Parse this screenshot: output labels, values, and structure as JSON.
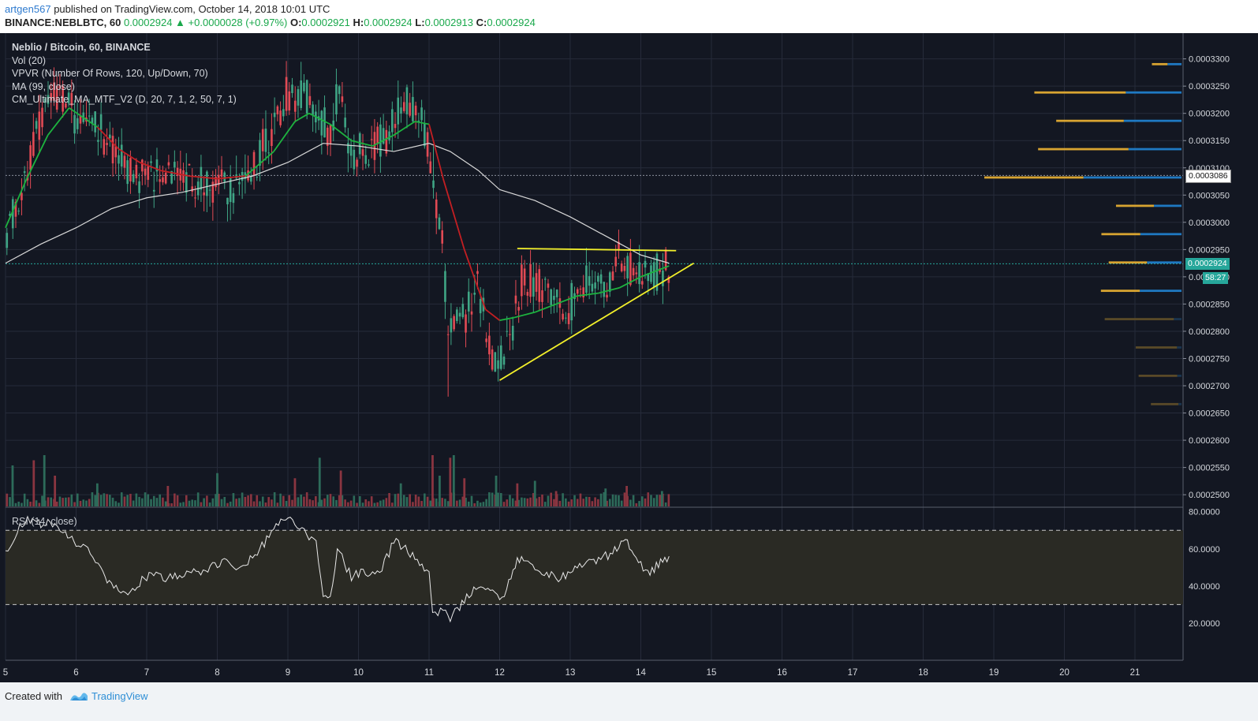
{
  "header": {
    "author": "artgen567",
    "published_text": "published on TradingView.com, October 14, 2018 10:01 UTC",
    "symbol": "BINANCE:NEBLBTC, 60",
    "last_price": "0.0002924",
    "change_arrow": "▲",
    "change": "+0.0000028 (+0.97%)",
    "o_label": "O:",
    "o_value": "0.0002921",
    "h_label": "H:",
    "h_value": "0.0002924",
    "l_label": "L:",
    "l_value": "0.0002913",
    "c_label": "C:",
    "c_value": "0.0002924"
  },
  "legend": {
    "title": "Neblio / Bitcoin, 60, BINANCE",
    "vol": "Vol (20)",
    "vpvr": "VPVR (Number Of Rows, 120, Up/Down, 70)",
    "ma": "MA (99, close)",
    "cm": "CM_Ultimate_MA_MTF_V2 (D, 20, 7, 1, 2, 50, 7, 1)"
  },
  "rsi_label": "RSI (14, close)",
  "price_tags": {
    "crosshair_price": "0.0003086",
    "current_price": "0.0002924",
    "countdown": "58:27"
  },
  "footer": {
    "created_with": "Created with",
    "brand": "TradingView"
  },
  "colors": {
    "background": "#131722",
    "grid": "#262b3a",
    "up_candle": "#3fa585",
    "down_candle": "#e24a54",
    "ma_white": "#d8d8d8",
    "cm_green": "#1db33f",
    "cm_red": "#c31f23",
    "trendline": "#f2ef2a",
    "vpvr_up": "#1f79c2",
    "vpvr_down": "#d8a431",
    "current_price_tag": "#26a69a"
  },
  "chart_data": [
    {
      "type": "candlestick",
      "title": "Neblio / Bitcoin, 60, BINANCE",
      "x_ticks": [
        "5",
        "6",
        "7",
        "8",
        "9",
        "10",
        "11",
        "12",
        "13",
        "14",
        "15",
        "16",
        "17",
        "18",
        "19",
        "20",
        "21"
      ],
      "y_ticks": [
        "0.0003300",
        "0.0003250",
        "0.0003200",
        "0.0003150",
        "0.0003100",
        "0.0003050",
        "0.0003000",
        "0.0002950",
        "0.0002900",
        "0.0002850",
        "0.0002800",
        "0.0002750",
        "0.0002700",
        "0.0002650",
        "0.0002600",
        "0.0002550",
        "0.0002500"
      ],
      "ylim": [
        0.00024785,
        0.000334
      ],
      "price_path": [
        [
          5.0,
          0.000298
        ],
        [
          5.3,
          0.00031
        ],
        [
          5.6,
          0.000322
        ],
        [
          5.8,
          0.000323
        ],
        [
          6.0,
          0.000319
        ],
        [
          6.3,
          0.000318
        ],
        [
          6.5,
          0.000313
        ],
        [
          6.8,
          0.000309
        ],
        [
          7.0,
          0.000308
        ],
        [
          7.3,
          0.00031
        ],
        [
          7.6,
          0.000308
        ],
        [
          7.9,
          0.000307
        ],
        [
          8.2,
          0.000306
        ],
        [
          8.5,
          0.00031
        ],
        [
          8.8,
          0.000318
        ],
        [
          9.0,
          0.000324
        ],
        [
          9.3,
          0.000323
        ],
        [
          9.6,
          0.000316
        ],
        [
          9.7,
          0.000324
        ],
        [
          9.9,
          0.000313
        ],
        [
          10.2,
          0.000314
        ],
        [
          10.4,
          0.000315
        ],
        [
          10.6,
          0.000322
        ],
        [
          10.9,
          0.00032
        ],
        [
          11.0,
          0.000313
        ],
        [
          11.05,
          0.000305
        ],
        [
          11.2,
          0.000295
        ],
        [
          11.25,
          0.000282
        ],
        [
          11.5,
          0.000282
        ],
        [
          11.7,
          0.000288
        ],
        [
          11.9,
          0.000276
        ],
        [
          12.0,
          0.000275
        ],
        [
          12.2,
          0.000281
        ],
        [
          12.3,
          0.00029
        ],
        [
          12.6,
          0.000288
        ],
        [
          12.9,
          0.000283
        ],
        [
          13.2,
          0.000289
        ],
        [
          13.5,
          0.000288
        ],
        [
          13.7,
          0.000294
        ],
        [
          13.9,
          0.000291
        ],
        [
          14.1,
          0.00029
        ],
        [
          14.25,
          0.000291
        ],
        [
          14.4,
          0.0002924
        ]
      ],
      "support_line": [
        [
          12.0,
          0.000271
        ],
        [
          14.75,
          0.0002925
        ]
      ],
      "resistance_line": [
        [
          12.25,
          0.0002952
        ],
        [
          14.5,
          0.0002948
        ]
      ],
      "ma99": [
        [
          5.0,
          0.0002925
        ],
        [
          5.5,
          0.000296
        ],
        [
          6.0,
          0.000299
        ],
        [
          6.5,
          0.0003025
        ],
        [
          7.0,
          0.0003045
        ],
        [
          7.5,
          0.0003055
        ],
        [
          8.0,
          0.000307
        ],
        [
          8.5,
          0.0003085
        ],
        [
          9.0,
          0.000311
        ],
        [
          9.5,
          0.0003145
        ],
        [
          10.0,
          0.000314
        ],
        [
          10.5,
          0.000313
        ],
        [
          11.0,
          0.0003145
        ],
        [
          11.3,
          0.000313
        ],
        [
          11.7,
          0.0003095
        ],
        [
          12.0,
          0.000306
        ],
        [
          12.5,
          0.000304
        ],
        [
          13.0,
          0.000301
        ],
        [
          13.5,
          0.0002975
        ],
        [
          14.0,
          0.000294
        ],
        [
          14.4,
          0.0002925
        ]
      ],
      "cm_ma": [
        [
          5.0,
          0.000299
        ],
        [
          5.3,
          0.000308
        ],
        [
          5.6,
          0.000316
        ],
        [
          5.9,
          0.000321
        ],
        [
          6.3,
          0.0003175
        ],
        [
          6.6,
          0.0003135
        ],
        [
          6.9,
          0.000311
        ],
        [
          7.2,
          0.0003095
        ],
        [
          7.6,
          0.0003085
        ],
        [
          8.0,
          0.000308
        ],
        [
          8.4,
          0.0003085
        ],
        [
          8.8,
          0.000313
        ],
        [
          9.1,
          0.0003185
        ],
        [
          9.3,
          0.00032
        ],
        [
          9.6,
          0.000318
        ],
        [
          9.9,
          0.000315
        ],
        [
          10.2,
          0.000314
        ],
        [
          10.5,
          0.000316
        ],
        [
          10.8,
          0.0003185
        ],
        [
          11.0,
          0.000318
        ],
        [
          11.2,
          0.000308
        ],
        [
          11.5,
          0.000295
        ],
        [
          11.8,
          0.000284
        ],
        [
          12.0,
          0.000282
        ],
        [
          12.2,
          0.0002825
        ],
        [
          12.5,
          0.0002835
        ],
        [
          12.8,
          0.000285
        ],
        [
          13.1,
          0.0002865
        ],
        [
          13.4,
          0.000287
        ],
        [
          13.7,
          0.000288
        ],
        [
          14.0,
          0.00029
        ],
        [
          14.4,
          0.000292
        ]
      ]
    },
    {
      "type": "line",
      "title": "RSI (14, close)",
      "y_ticks": [
        "80.0000",
        "60.0000",
        "40.0000",
        "20.0000"
      ],
      "ylim": [
        0,
        82
      ],
      "overbought": 70,
      "oversold": 30,
      "x": [
        5.0,
        5.2,
        5.35,
        5.5,
        5.7,
        5.85,
        6.0,
        6.2,
        6.35,
        6.5,
        6.7,
        6.9,
        7.1,
        7.3,
        7.6,
        7.9,
        8.1,
        8.3,
        8.5,
        8.7,
        8.9,
        9.0,
        9.2,
        9.4,
        9.5,
        9.6,
        9.7,
        9.9,
        10.1,
        10.3,
        10.5,
        10.6,
        10.8,
        11.0,
        11.05,
        11.2,
        11.3,
        11.5,
        11.7,
        11.9,
        12.0,
        12.1,
        12.25,
        12.4,
        12.6,
        12.8,
        13.0,
        13.2,
        13.4,
        13.6,
        13.75,
        13.9,
        14.1,
        14.25,
        14.4
      ],
      "values": [
        58,
        72,
        76,
        73,
        74,
        68,
        62,
        58,
        48,
        40,
        36,
        42,
        48,
        44,
        46,
        50,
        54,
        48,
        55,
        65,
        76,
        78,
        70,
        62,
        35,
        33,
        60,
        45,
        48,
        46,
        64,
        62,
        55,
        46,
        25,
        28,
        22,
        32,
        40,
        36,
        32,
        38,
        55,
        52,
        48,
        44,
        47,
        53,
        54,
        58,
        66,
        58,
        46,
        52,
        56
      ]
    },
    {
      "type": "bar",
      "title": "Vol (20)",
      "note": "volume histogram, relative heights",
      "x": [
        5.1,
        5.4,
        5.55,
        5.7,
        6.3,
        7.3,
        8.0,
        9.1,
        9.45,
        9.75,
        10.6,
        11.05,
        11.15,
        11.3,
        11.35,
        11.5,
        11.95,
        12.25,
        12.5,
        12.8,
        13.5,
        13.8,
        14.3
      ],
      "values": [
        0.8,
        0.9,
        1.0,
        0.6,
        0.45,
        0.4,
        0.65,
        0.55,
        0.95,
        0.7,
        0.45,
        1.0,
        0.6,
        0.95,
        1.0,
        0.55,
        0.6,
        0.45,
        0.5,
        0.3,
        0.35,
        0.4,
        0.3
      ]
    }
  ]
}
